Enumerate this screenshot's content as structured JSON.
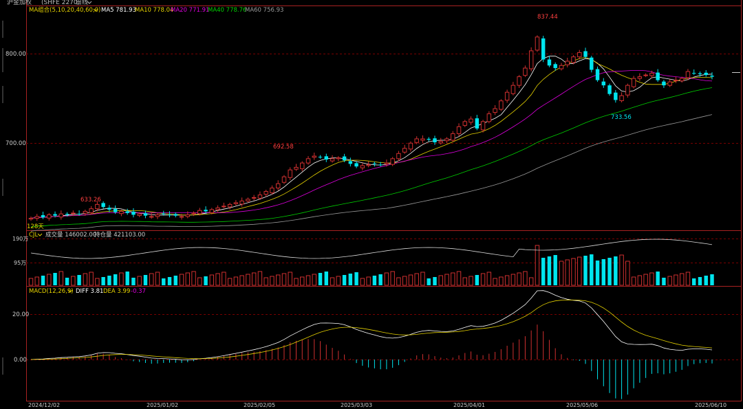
{
  "header": {
    "title": "沪金加权",
    "code": "(SHFE 2270)",
    "period": "日线"
  },
  "ma_panel": {
    "label": "MA组合(5,10,20,40,60,0)",
    "items": [
      {
        "label": "MA5 781.93",
        "color": "#ffffff"
      },
      {
        "label": "MA10 778.04",
        "color": "#e6d200"
      },
      {
        "label": "MA20 771.91",
        "color": "#e000e0"
      },
      {
        "label": "MA40 778.76",
        "color": "#00d000"
      },
      {
        "label": "MA60 756.93",
        "color": "#9a9a9a"
      }
    ]
  },
  "price_axis": {
    "labels": [
      "800.00",
      "700.00"
    ]
  },
  "annotations": {
    "high": "837.44",
    "mid": "692.58",
    "low1": "633.26",
    "low2": "733.56",
    "days": "128天"
  },
  "volume_panel": {
    "label": "CJL",
    "volume_text": "成交量 146002.00",
    "oi_text": "持仓量 421103.00",
    "axis_labels": [
      "190万",
      "95万"
    ]
  },
  "macd_panel": {
    "label": "MACD(12,26,9)",
    "diff_text": "DIFF 3.81",
    "dea_text": "DEA 3.99",
    "macd_text": "-0.37",
    "axis_labels": [
      "20.00",
      "0.00"
    ]
  },
  "x_axis": {
    "labels": [
      "2024/12/02",
      "2025/01/02",
      "2025/02/05",
      "2025/03/03",
      "2025/04/01",
      "2025/05/06",
      "2025/06/10"
    ]
  },
  "colors": {
    "up": "#d03030",
    "down": "#00e5ee",
    "grid": "#7a0000",
    "axis": "#aa2222"
  },
  "chart_data": {
    "type": "candlestick",
    "price_range": [
      610,
      845
    ],
    "series": [
      {
        "name": "close",
        "values": [
          616,
          618,
          617,
          620,
          619,
          621,
          620,
          622,
          621,
          624,
          627,
          632,
          629,
          626,
          623,
          624,
          622,
          620,
          621,
          619,
          618,
          620,
          621,
          620,
          619,
          618,
          620,
          622,
          625,
          624,
          626,
          628,
          630,
          632,
          634,
          636,
          638,
          640,
          643,
          647,
          651,
          656,
          664,
          672,
          675,
          680,
          685,
          688,
          687,
          684,
          685,
          686,
          683,
          679,
          676,
          677,
          678,
          679,
          678,
          680,
          685,
          691,
          697,
          703,
          708,
          708,
          707,
          704,
          705,
          708,
          714,
          722,
          728,
          731,
          720,
          728,
          737,
          743,
          752,
          762,
          770,
          780,
          790,
          810,
          826,
          800,
          793,
          790,
          793,
          798,
          803,
          808,
          803,
          788,
          776,
          770,
          760,
          753,
          758,
          770,
          778,
          780,
          782,
          784,
          776,
          770,
          774,
          776,
          778,
          786,
          784,
          783,
          782,
          780
        ]
      }
    ]
  }
}
